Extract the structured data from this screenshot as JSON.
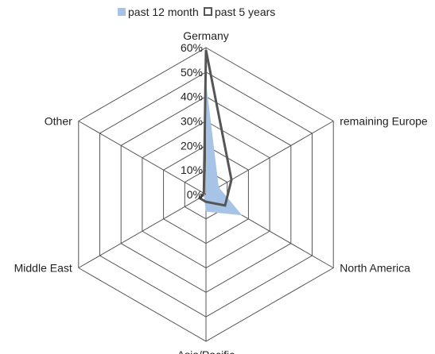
{
  "chart_data": {
    "type": "radar",
    "categories": [
      "Germany",
      "remaining Europe",
      "North America",
      "Asia/Pacific",
      "Middle East",
      "Other"
    ],
    "series": [
      {
        "name": "past 12 month",
        "values": [
          46,
          6,
          17,
          7,
          1,
          0
        ],
        "color": "#a7c3e6",
        "style": "filled"
      },
      {
        "name": "past 5 years",
        "values": [
          59,
          12,
          9,
          3,
          3,
          1
        ],
        "color": "#555555",
        "style": "line"
      }
    ],
    "rlim": [
      0,
      60
    ],
    "ticks": [
      "0%",
      "10%",
      "20%",
      "30%",
      "40%",
      "50%",
      "60%"
    ],
    "grid": true,
    "legend_position": "top"
  }
}
